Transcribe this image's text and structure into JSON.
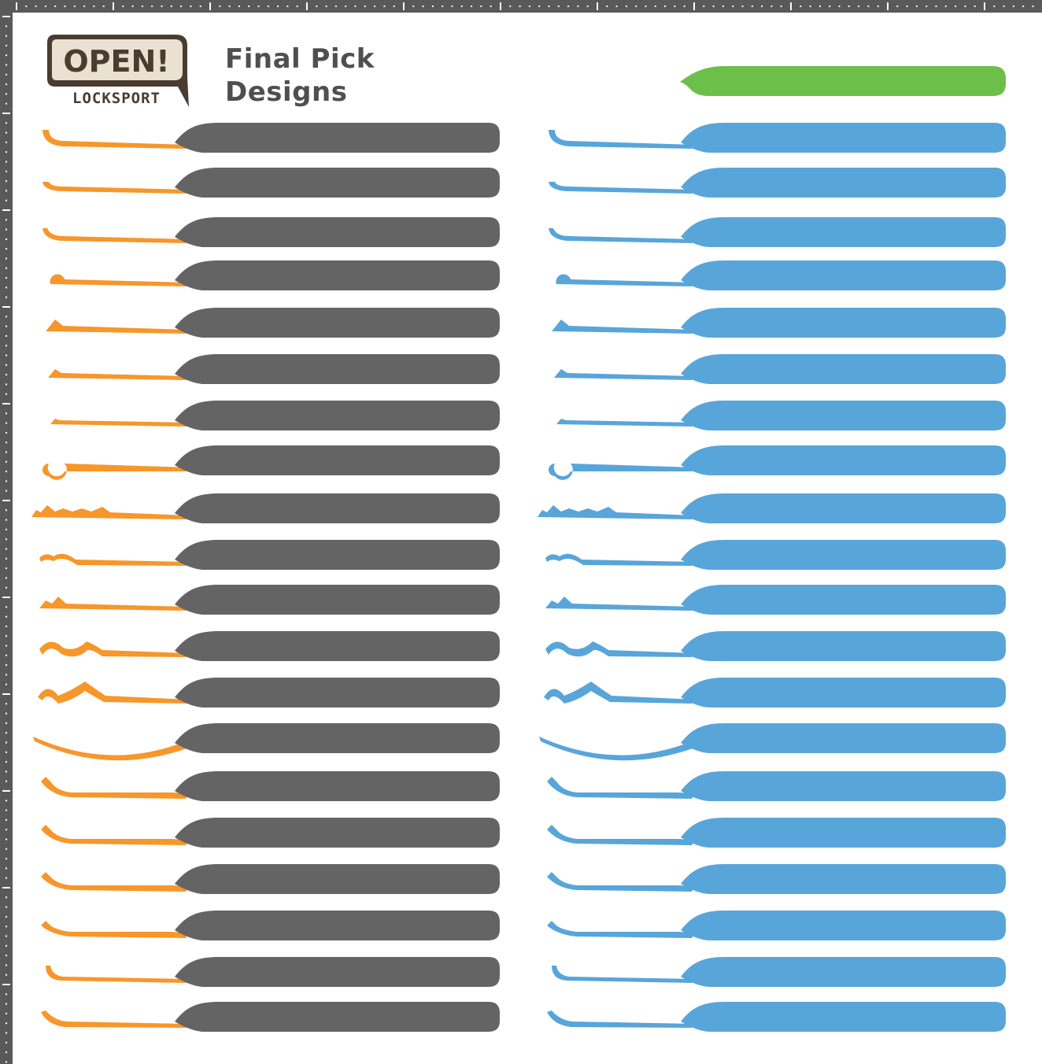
{
  "logo": {
    "main": "OPEN!",
    "sub": "LOCKSPORT"
  },
  "title": {
    "line1": "Final Pick",
    "line2": "Designs"
  },
  "colors": {
    "background": "#ffffff",
    "ruler": "#595959",
    "logo_fill": "#e9e1d2",
    "logo_ink": "#4a3c30",
    "title_text": "#4f4f4f",
    "tip_orange": "#f7962a",
    "handle_gray": "#646464",
    "pick_blue": "#58a5da",
    "sample_green": "#6cbf49"
  },
  "sample_handle": {
    "color": "green"
  },
  "pick_columns": [
    {
      "name": "left",
      "tip_color": "orange",
      "handle_color": "gray"
    },
    {
      "name": "right",
      "tip_color": "blue",
      "handle_color": "blue"
    }
  ],
  "pick_designs": [
    "hook-deep",
    "hook-medium",
    "hook-short",
    "ball",
    "half-diamond-large",
    "half-diamond-medium",
    "half-diamond-small",
    "double-ball",
    "rake-comb",
    "wave-small",
    "double-bump",
    "snake",
    "bogota",
    "curved-rake",
    "offset-hook-1",
    "offset-hook-2",
    "offset-hook-3",
    "offset-hook-4",
    "gonzo-hook-1",
    "gonzo-hook-2"
  ]
}
